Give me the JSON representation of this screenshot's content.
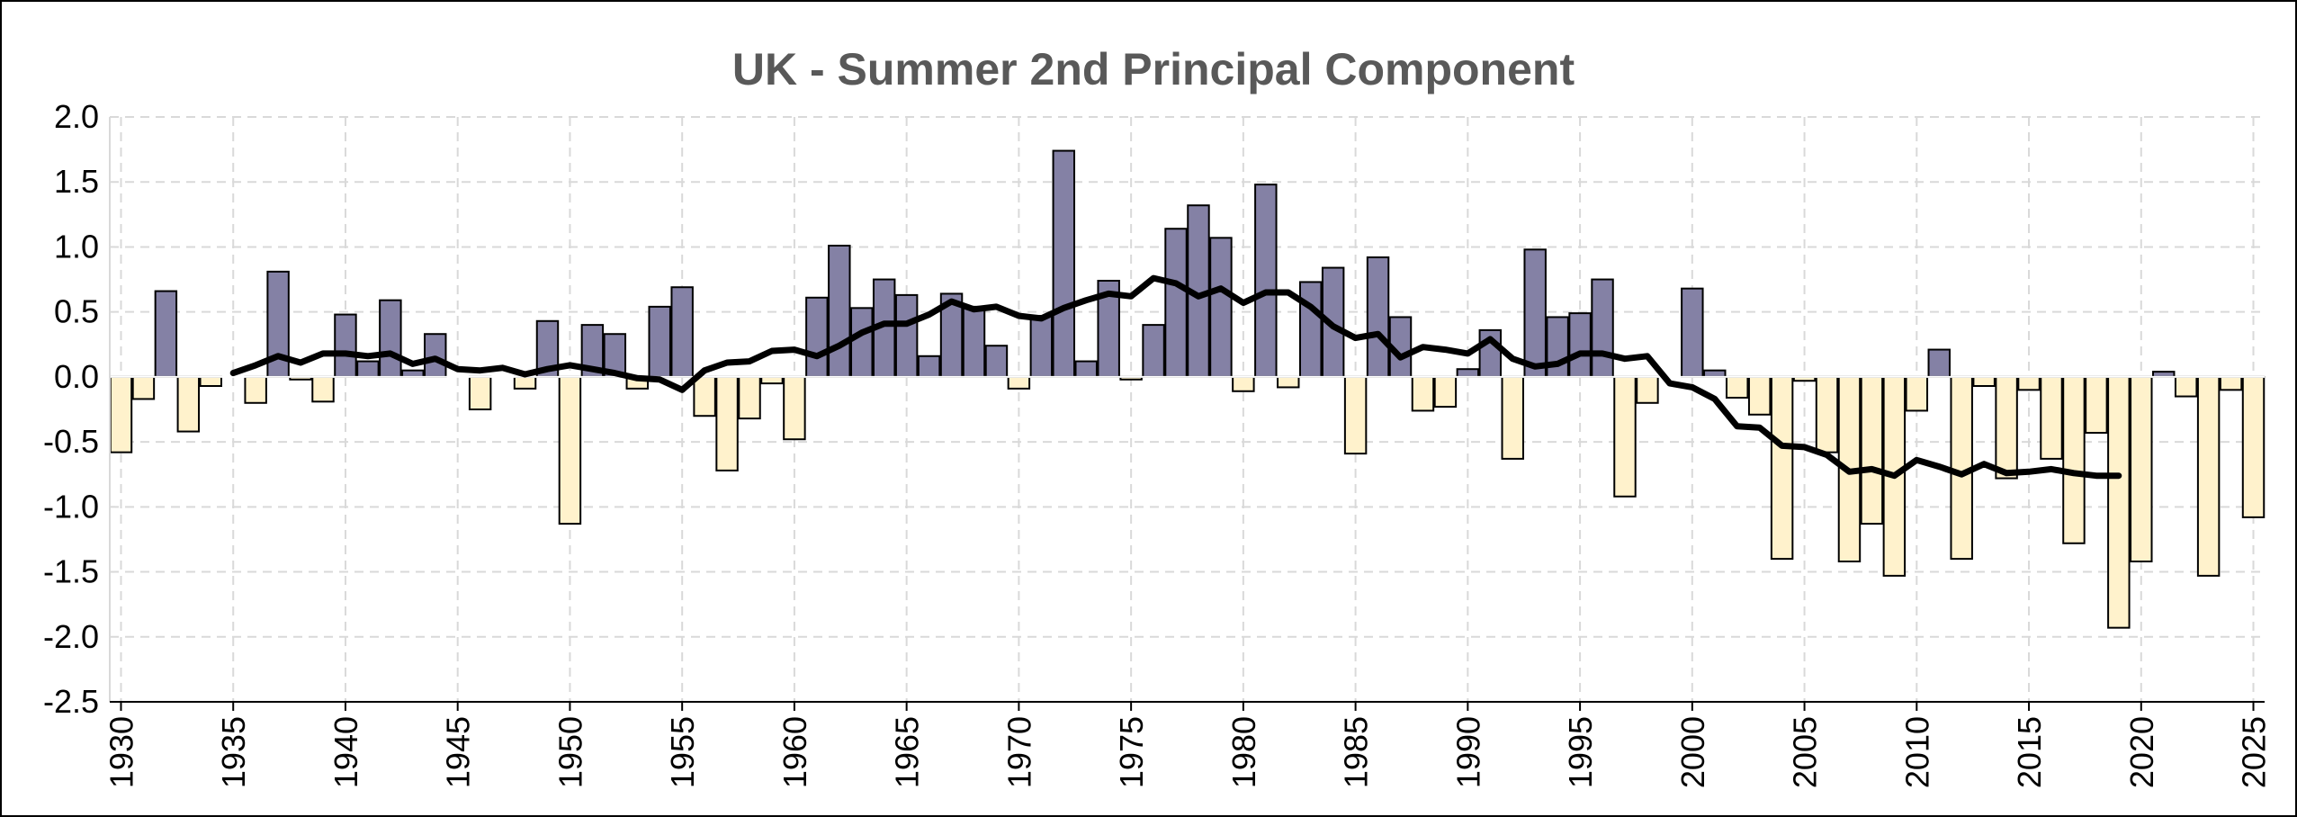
{
  "chart_data": {
    "type": "bar",
    "title": "UK - Summer 2nd Principal Component",
    "xlabel": "",
    "ylabel": "",
    "ylim": [
      -2.5,
      2.0
    ],
    "yticks": [
      "2.0",
      "1.5",
      "1.0",
      "0.5",
      "0.0",
      "-0.5",
      "-1.0",
      "-1.5",
      "-2.0",
      "-2.5"
    ],
    "yticks_values": [
      2.0,
      1.5,
      1.0,
      0.5,
      0.0,
      -0.5,
      -1.0,
      -1.5,
      -2.0,
      -2.5
    ],
    "xlim": [
      1930,
      2025
    ],
    "xticks": [
      "1930",
      "1935",
      "1940",
      "1945",
      "1950",
      "1955",
      "1960",
      "1965",
      "1970",
      "1975",
      "1980",
      "1985",
      "1990",
      "1995",
      "2000",
      "2005",
      "2010",
      "2015",
      "2020",
      "2025"
    ],
    "xticks_values": [
      1930,
      1935,
      1940,
      1945,
      1950,
      1955,
      1960,
      1965,
      1970,
      1975,
      1980,
      1985,
      1990,
      1995,
      2000,
      2005,
      2010,
      2015,
      2020,
      2025
    ],
    "grid": true,
    "legend": "none",
    "colors": {
      "positive": "#8481a5",
      "negative": "#fff2cc",
      "bar_edge": "#000000",
      "smooth_line": "#000000",
      "grid": "#d9d9d9",
      "title": "#595959"
    },
    "series": [
      {
        "type": "bar",
        "years": [
          1930,
          1931,
          1932,
          1933,
          1934,
          1935,
          1936,
          1937,
          1938,
          1939,
          1940,
          1941,
          1942,
          1943,
          1944,
          1945,
          1946,
          1947,
          1948,
          1949,
          1950,
          1951,
          1952,
          1953,
          1954,
          1955,
          1956,
          1957,
          1958,
          1959,
          1960,
          1961,
          1962,
          1963,
          1964,
          1965,
          1966,
          1967,
          1968,
          1969,
          1970,
          1971,
          1972,
          1973,
          1974,
          1975,
          1976,
          1977,
          1978,
          1979,
          1980,
          1981,
          1982,
          1983,
          1984,
          1985,
          1986,
          1987,
          1988,
          1989,
          1990,
          1991,
          1992,
          1993,
          1994,
          1995,
          1996,
          1997,
          1998,
          1999,
          2000,
          2001,
          2002,
          2003,
          2004,
          2005,
          2006,
          2007,
          2008,
          2009,
          2010,
          2011,
          2012,
          2013,
          2014,
          2015,
          2016,
          2017,
          2018,
          2019,
          2020,
          2021,
          2022,
          2023,
          2024,
          2025
        ],
        "values": [
          -0.58,
          -0.17,
          0.66,
          -0.42,
          -0.07,
          0.0,
          -0.2,
          0.81,
          -0.02,
          -0.19,
          0.48,
          0.12,
          0.59,
          0.05,
          0.33,
          0.0,
          -0.25,
          0.0,
          -0.09,
          0.43,
          -1.13,
          0.4,
          0.33,
          -0.09,
          0.54,
          0.69,
          -0.3,
          -0.72,
          -0.32,
          -0.05,
          -0.48,
          0.61,
          1.01,
          0.53,
          0.75,
          0.63,
          0.16,
          0.64,
          0.54,
          0.24,
          -0.09,
          0.47,
          1.74,
          0.12,
          0.74,
          -0.02,
          0.4,
          1.14,
          1.32,
          1.07,
          -0.11,
          1.48,
          -0.08,
          0.73,
          0.84,
          -0.59,
          0.92,
          0.46,
          -0.26,
          -0.23,
          0.06,
          0.36,
          -0.63,
          0.98,
          0.46,
          0.49,
          0.75,
          -0.92,
          -0.2,
          0.0,
          0.68,
          0.05,
          -0.16,
          -0.29,
          -1.4,
          -0.03,
          -0.58,
          -1.42,
          -1.13,
          -1.53,
          -0.26,
          0.21,
          -1.4,
          -0.07,
          -0.78,
          -0.1,
          -0.63,
          -1.28,
          -0.43,
          -1.93,
          -1.42,
          0.04,
          -0.15,
          -1.53,
          -0.1,
          -1.08
        ]
      },
      {
        "type": "line",
        "years": [
          1935,
          1936,
          1937,
          1938,
          1939,
          1940,
          1941,
          1942,
          1943,
          1944,
          1945,
          1946,
          1947,
          1948,
          1949,
          1950,
          1951,
          1952,
          1953,
          1954,
          1955,
          1956,
          1957,
          1958,
          1959,
          1960,
          1961,
          1962,
          1963,
          1964,
          1965,
          1966,
          1967,
          1968,
          1969,
          1970,
          1971,
          1972,
          1973,
          1974,
          1975,
          1976,
          1977,
          1978,
          1979,
          1980,
          1981,
          1982,
          1983,
          1984,
          1985,
          1986,
          1987,
          1988,
          1989,
          1990,
          1991,
          1992,
          1993,
          1994,
          1995,
          1996,
          1997,
          1998,
          1999,
          2000,
          2001,
          2002,
          2003,
          2004,
          2005,
          2006,
          2007,
          2008,
          2009,
          2010,
          2011,
          2012,
          2013,
          2014,
          2015,
          2016,
          2017,
          2018,
          2019
        ],
        "values": [
          0.03,
          0.09,
          0.16,
          0.11,
          0.18,
          0.18,
          0.16,
          0.18,
          0.1,
          0.14,
          0.06,
          0.05,
          0.07,
          0.02,
          0.06,
          0.09,
          0.06,
          0.03,
          -0.01,
          -0.02,
          -0.1,
          0.05,
          0.11,
          0.12,
          0.2,
          0.21,
          0.16,
          0.24,
          0.34,
          0.41,
          0.41,
          0.48,
          0.58,
          0.52,
          0.54,
          0.47,
          0.45,
          0.53,
          0.59,
          0.64,
          0.62,
          0.76,
          0.72,
          0.62,
          0.68,
          0.57,
          0.65,
          0.65,
          0.54,
          0.39,
          0.3,
          0.33,
          0.15,
          0.23,
          0.21,
          0.18,
          0.29,
          0.14,
          0.08,
          0.1,
          0.18,
          0.18,
          0.14,
          0.16,
          -0.05,
          -0.08,
          -0.17,
          -0.38,
          -0.39,
          -0.53,
          -0.54,
          -0.6,
          -0.73,
          -0.71,
          -0.76,
          -0.64,
          -0.69,
          -0.75,
          -0.67,
          -0.74,
          -0.73,
          -0.71,
          -0.74,
          -0.76,
          -0.76
        ]
      }
    ]
  }
}
